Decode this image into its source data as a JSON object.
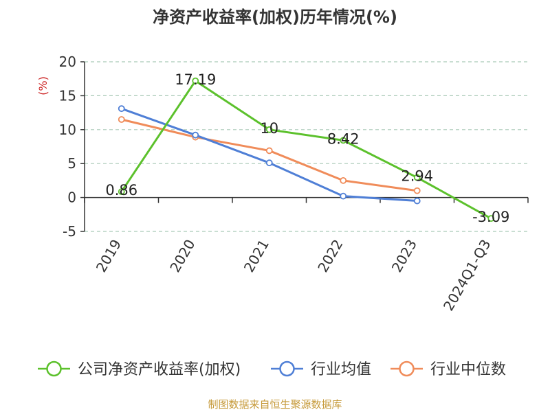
{
  "chart_data": {
    "type": "line",
    "title": "净资产收益率(加权)历年情况(%)",
    "ylabel": "(%)",
    "categories": [
      "2019",
      "2020",
      "2021",
      "2022",
      "2023",
      "2024Q1-Q3"
    ],
    "ylim": [
      -5,
      20
    ],
    "yticks": [
      20,
      15,
      10,
      5,
      0,
      -5
    ],
    "grid": "horizontal dashed",
    "legend_position": "bottom",
    "series": [
      {
        "name": "公司净资产收益率(加权)",
        "color": "#5cc12c",
        "values": [
          0.86,
          17.19,
          10,
          8.42,
          2.94,
          -3.09
        ],
        "labels": [
          "0.86",
          "17.19",
          "10",
          "8.42",
          "2.94",
          "-3.09"
        ]
      },
      {
        "name": "行业均值",
        "color": "#4f7fd6",
        "values": [
          13.1,
          9.2,
          5.1,
          0.2,
          -0.5,
          null
        ]
      },
      {
        "name": "行业中位数",
        "color": "#f08c5a",
        "values": [
          11.5,
          8.9,
          6.9,
          2.5,
          1.0,
          null
        ]
      }
    ],
    "unit_color": "#cc2222"
  },
  "source": {
    "text": "制图数据来自恒生聚源数据库",
    "color": "#c69a3a"
  }
}
